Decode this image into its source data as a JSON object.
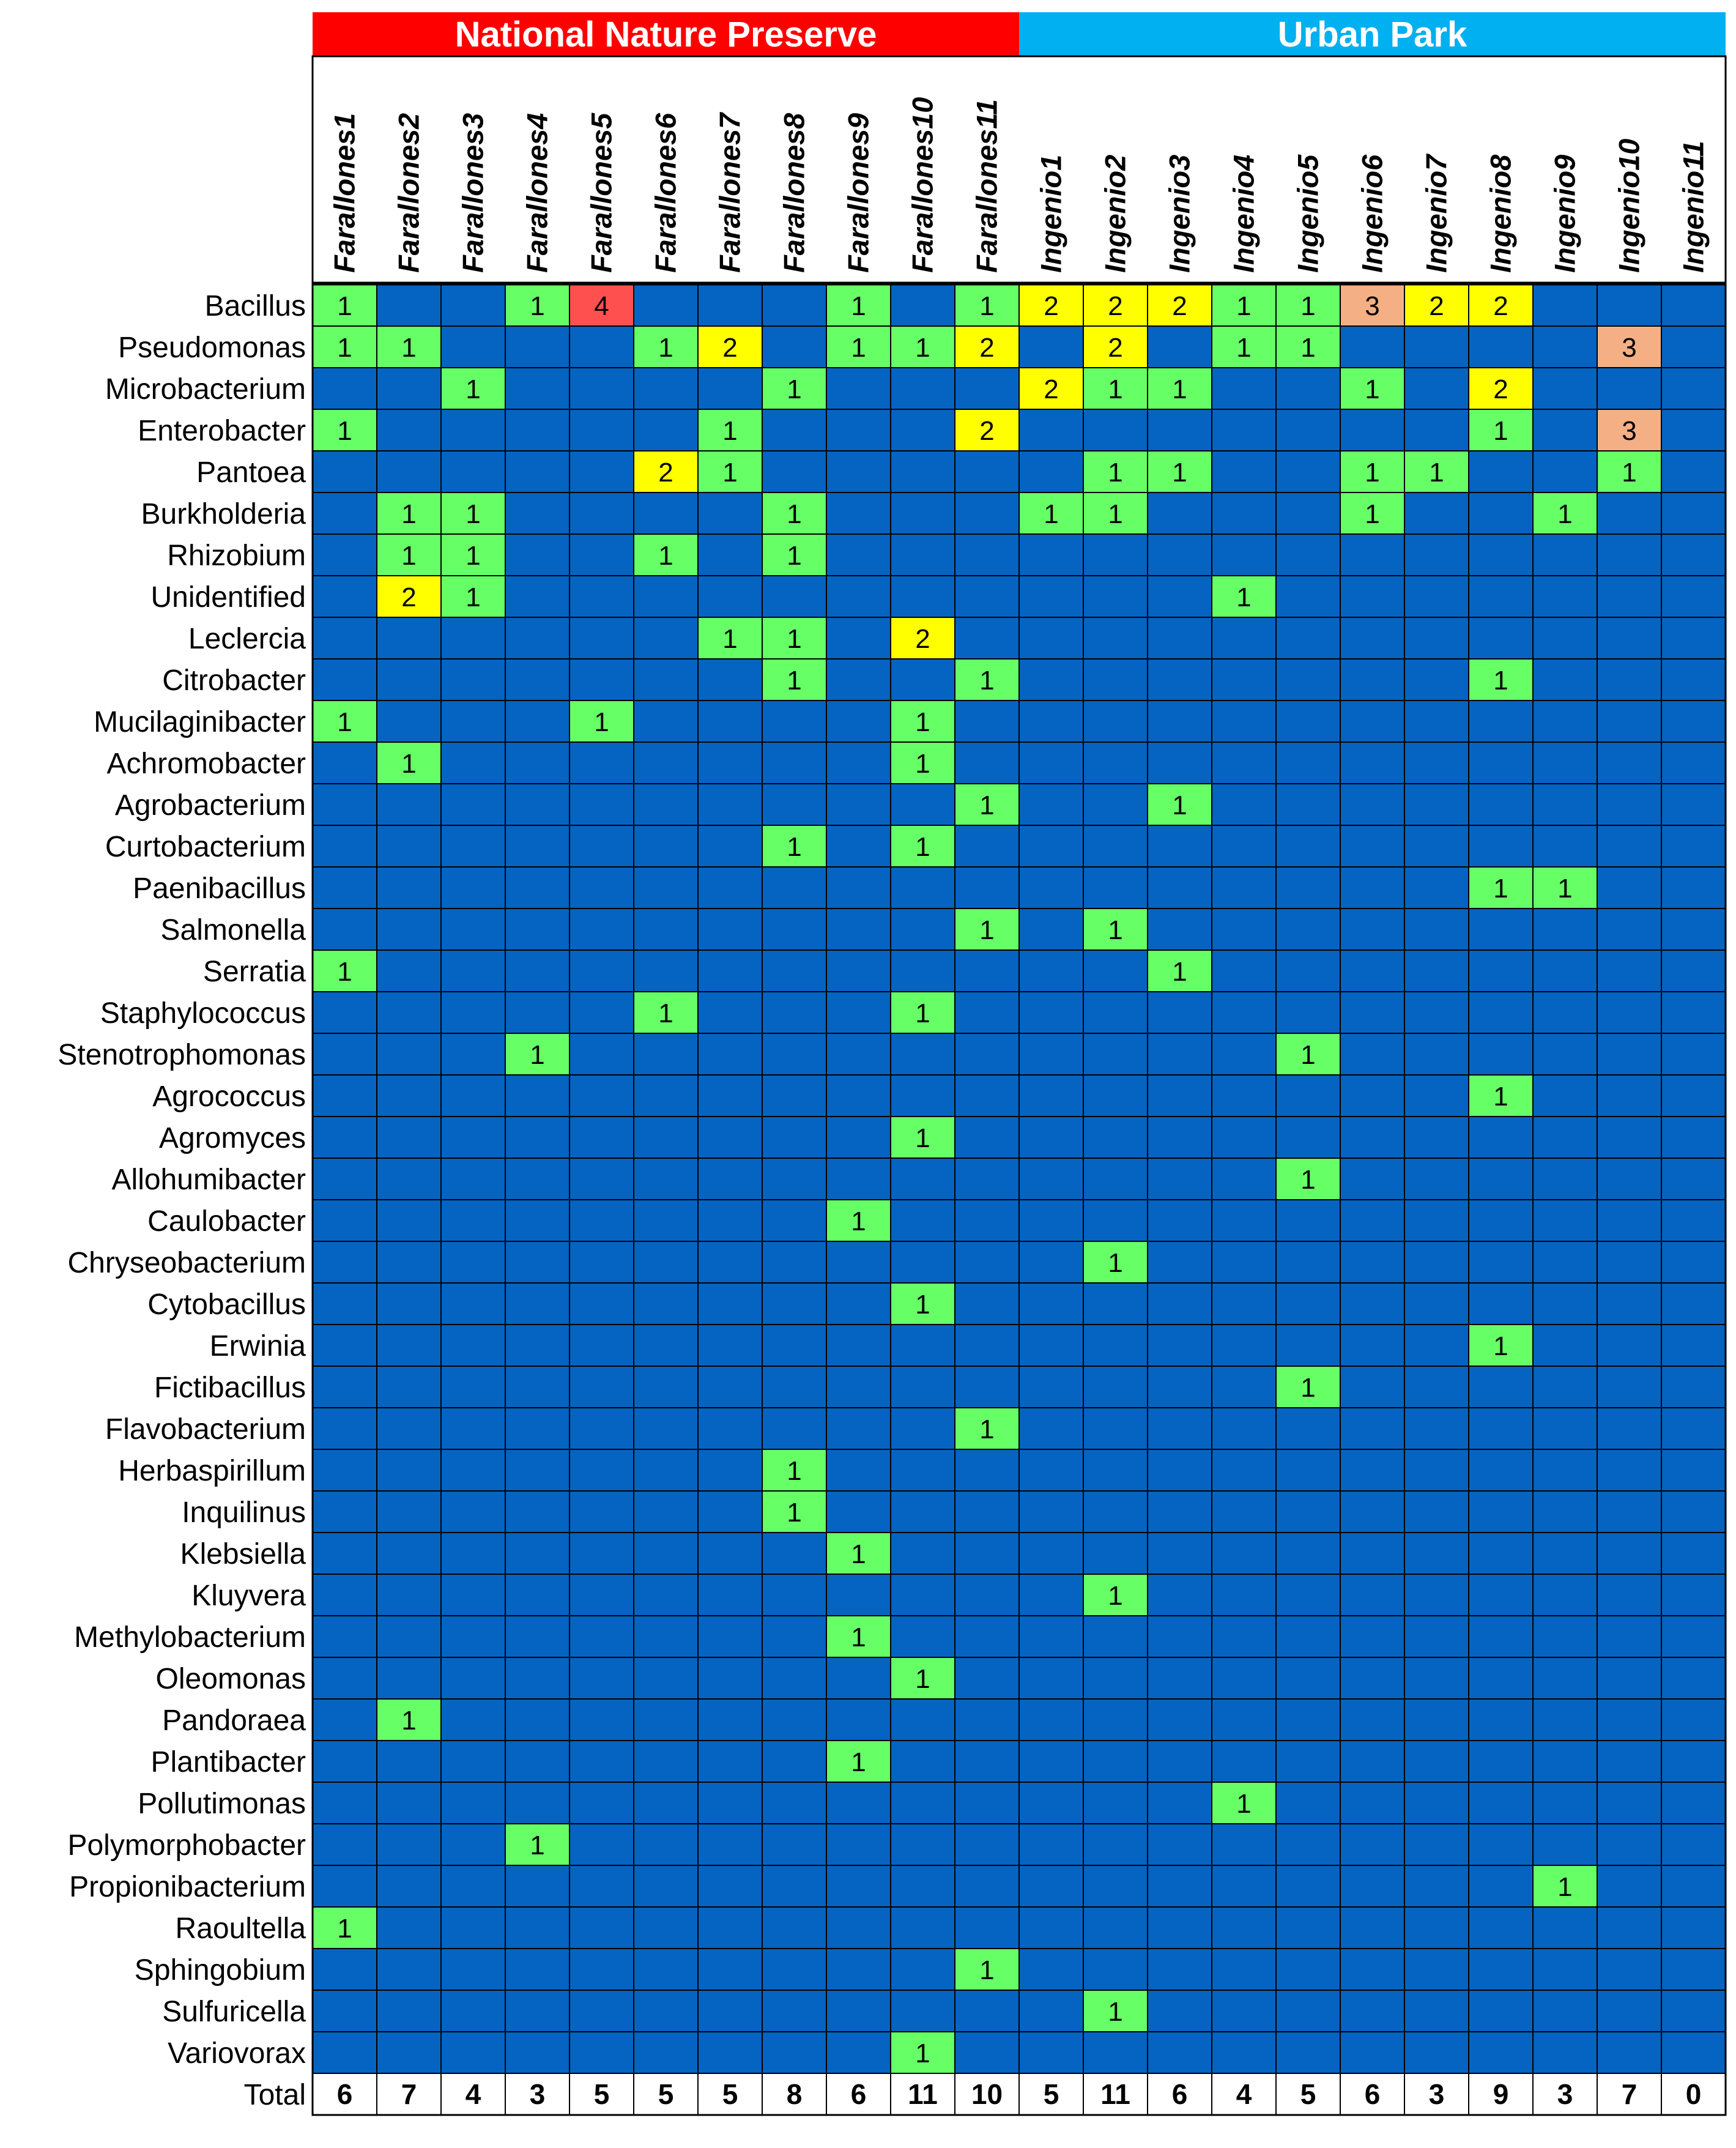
{
  "chart_data": {
    "type": "heatmap",
    "groups": [
      {
        "name": "National Nature Preserve",
        "color": "#ff0000",
        "span": 11
      },
      {
        "name": "Urban Park",
        "color": "#00b0f0",
        "span": 11
      }
    ],
    "columns": [
      "Farallones1",
      "Farallones2",
      "Farallones3",
      "Farallones4",
      "Farallones5",
      "Farallones6",
      "Farallones7",
      "Farallones8",
      "Farallones9",
      "Farallones10",
      "Farallones11",
      "Ingenio1",
      "Ingenio2",
      "Ingenio3",
      "Ingenio4",
      "Ingenio5",
      "Ingenio6",
      "Ingenio7",
      "Ingenio8",
      "Ingenio9",
      "Ingenio10",
      "Ingenio11"
    ],
    "rows": [
      {
        "label": "Bacillus",
        "values": [
          1,
          0,
          0,
          1,
          4,
          0,
          0,
          0,
          1,
          0,
          1,
          2,
          2,
          2,
          1,
          1,
          3,
          2,
          2,
          0,
          0,
          0
        ]
      },
      {
        "label": "Pseudomonas",
        "values": [
          1,
          1,
          0,
          0,
          0,
          1,
          2,
          0,
          1,
          1,
          2,
          0,
          2,
          0,
          1,
          1,
          0,
          0,
          0,
          0,
          3,
          0
        ]
      },
      {
        "label": "Microbacterium",
        "values": [
          0,
          0,
          1,
          0,
          0,
          0,
          0,
          1,
          0,
          0,
          0,
          2,
          1,
          1,
          0,
          0,
          1,
          0,
          2,
          0,
          0,
          0
        ]
      },
      {
        "label": "Enterobacter",
        "values": [
          1,
          0,
          0,
          0,
          0,
          0,
          1,
          0,
          0,
          0,
          2,
          0,
          0,
          0,
          0,
          0,
          0,
          0,
          1,
          0,
          3,
          0
        ]
      },
      {
        "label": "Pantoea",
        "values": [
          0,
          0,
          0,
          0,
          0,
          2,
          1,
          0,
          0,
          0,
          0,
          0,
          1,
          1,
          0,
          0,
          1,
          1,
          0,
          0,
          1,
          0
        ]
      },
      {
        "label": "Burkholderia",
        "values": [
          0,
          1,
          1,
          0,
          0,
          0,
          0,
          1,
          0,
          0,
          0,
          1,
          1,
          0,
          0,
          0,
          1,
          0,
          0,
          1,
          0,
          0
        ]
      },
      {
        "label": "Rhizobium",
        "values": [
          0,
          1,
          1,
          0,
          0,
          1,
          0,
          1,
          0,
          0,
          0,
          0,
          0,
          0,
          0,
          0,
          0,
          0,
          0,
          0,
          0,
          0
        ]
      },
      {
        "label": "Unidentified",
        "values": [
          0,
          2,
          1,
          0,
          0,
          0,
          0,
          0,
          0,
          0,
          0,
          0,
          0,
          0,
          1,
          0,
          0,
          0,
          0,
          0,
          0,
          0
        ]
      },
      {
        "label": "Leclercia",
        "values": [
          0,
          0,
          0,
          0,
          0,
          0,
          1,
          1,
          0,
          2,
          0,
          0,
          0,
          0,
          0,
          0,
          0,
          0,
          0,
          0,
          0,
          0
        ]
      },
      {
        "label": "Citrobacter",
        "values": [
          0,
          0,
          0,
          0,
          0,
          0,
          0,
          1,
          0,
          0,
          1,
          0,
          0,
          0,
          0,
          0,
          0,
          0,
          1,
          0,
          0,
          0
        ]
      },
      {
        "label": "Mucilaginibacter",
        "values": [
          1,
          0,
          0,
          0,
          1,
          0,
          0,
          0,
          0,
          1,
          0,
          0,
          0,
          0,
          0,
          0,
          0,
          0,
          0,
          0,
          0,
          0
        ]
      },
      {
        "label": "Achromobacter",
        "values": [
          0,
          1,
          0,
          0,
          0,
          0,
          0,
          0,
          0,
          1,
          0,
          0,
          0,
          0,
          0,
          0,
          0,
          0,
          0,
          0,
          0,
          0
        ]
      },
      {
        "label": "Agrobacterium",
        "values": [
          0,
          0,
          0,
          0,
          0,
          0,
          0,
          0,
          0,
          0,
          1,
          0,
          0,
          1,
          0,
          0,
          0,
          0,
          0,
          0,
          0,
          0
        ]
      },
      {
        "label": "Curtobacterium",
        "values": [
          0,
          0,
          0,
          0,
          0,
          0,
          0,
          1,
          0,
          1,
          0,
          0,
          0,
          0,
          0,
          0,
          0,
          0,
          0,
          0,
          0,
          0
        ]
      },
      {
        "label": "Paenibacillus",
        "values": [
          0,
          0,
          0,
          0,
          0,
          0,
          0,
          0,
          0,
          0,
          0,
          0,
          0,
          0,
          0,
          0,
          0,
          0,
          1,
          1,
          0,
          0
        ]
      },
      {
        "label": "Salmonella",
        "values": [
          0,
          0,
          0,
          0,
          0,
          0,
          0,
          0,
          0,
          0,
          1,
          0,
          1,
          0,
          0,
          0,
          0,
          0,
          0,
          0,
          0,
          0
        ]
      },
      {
        "label": "Serratia",
        "values": [
          1,
          0,
          0,
          0,
          0,
          0,
          0,
          0,
          0,
          0,
          0,
          0,
          0,
          1,
          0,
          0,
          0,
          0,
          0,
          0,
          0,
          0
        ]
      },
      {
        "label": "Staphylococcus",
        "values": [
          0,
          0,
          0,
          0,
          0,
          1,
          0,
          0,
          0,
          1,
          0,
          0,
          0,
          0,
          0,
          0,
          0,
          0,
          0,
          0,
          0,
          0
        ]
      },
      {
        "label": "Stenotrophomonas",
        "values": [
          0,
          0,
          0,
          1,
          0,
          0,
          0,
          0,
          0,
          0,
          0,
          0,
          0,
          0,
          0,
          1,
          0,
          0,
          0,
          0,
          0,
          0
        ]
      },
      {
        "label": "Agrococcus",
        "values": [
          0,
          0,
          0,
          0,
          0,
          0,
          0,
          0,
          0,
          0,
          0,
          0,
          0,
          0,
          0,
          0,
          0,
          0,
          1,
          0,
          0,
          0
        ]
      },
      {
        "label": "Agromyces",
        "values": [
          0,
          0,
          0,
          0,
          0,
          0,
          0,
          0,
          0,
          1,
          0,
          0,
          0,
          0,
          0,
          0,
          0,
          0,
          0,
          0,
          0,
          0
        ]
      },
      {
        "label": "Allohumibacter",
        "values": [
          0,
          0,
          0,
          0,
          0,
          0,
          0,
          0,
          0,
          0,
          0,
          0,
          0,
          0,
          0,
          1,
          0,
          0,
          0,
          0,
          0,
          0
        ]
      },
      {
        "label": "Caulobacter",
        "values": [
          0,
          0,
          0,
          0,
          0,
          0,
          0,
          0,
          1,
          0,
          0,
          0,
          0,
          0,
          0,
          0,
          0,
          0,
          0,
          0,
          0,
          0
        ]
      },
      {
        "label": "Chryseobacterium",
        "values": [
          0,
          0,
          0,
          0,
          0,
          0,
          0,
          0,
          0,
          0,
          0,
          0,
          1,
          0,
          0,
          0,
          0,
          0,
          0,
          0,
          0,
          0
        ]
      },
      {
        "label": "Cytobacillus",
        "values": [
          0,
          0,
          0,
          0,
          0,
          0,
          0,
          0,
          0,
          1,
          0,
          0,
          0,
          0,
          0,
          0,
          0,
          0,
          0,
          0,
          0,
          0
        ]
      },
      {
        "label": "Erwinia",
        "values": [
          0,
          0,
          0,
          0,
          0,
          0,
          0,
          0,
          0,
          0,
          0,
          0,
          0,
          0,
          0,
          0,
          0,
          0,
          1,
          0,
          0,
          0
        ]
      },
      {
        "label": "Fictibacillus",
        "values": [
          0,
          0,
          0,
          0,
          0,
          0,
          0,
          0,
          0,
          0,
          0,
          0,
          0,
          0,
          0,
          1,
          0,
          0,
          0,
          0,
          0,
          0
        ]
      },
      {
        "label": "Flavobacterium",
        "values": [
          0,
          0,
          0,
          0,
          0,
          0,
          0,
          0,
          0,
          0,
          1,
          0,
          0,
          0,
          0,
          0,
          0,
          0,
          0,
          0,
          0,
          0
        ]
      },
      {
        "label": "Herbaspirillum",
        "values": [
          0,
          0,
          0,
          0,
          0,
          0,
          0,
          1,
          0,
          0,
          0,
          0,
          0,
          0,
          0,
          0,
          0,
          0,
          0,
          0,
          0,
          0
        ]
      },
      {
        "label": "Inquilinus",
        "values": [
          0,
          0,
          0,
          0,
          0,
          0,
          0,
          1,
          0,
          0,
          0,
          0,
          0,
          0,
          0,
          0,
          0,
          0,
          0,
          0,
          0,
          0
        ]
      },
      {
        "label": "Klebsiella",
        "values": [
          0,
          0,
          0,
          0,
          0,
          0,
          0,
          0,
          1,
          0,
          0,
          0,
          0,
          0,
          0,
          0,
          0,
          0,
          0,
          0,
          0,
          0
        ]
      },
      {
        "label": "Kluyvera",
        "values": [
          0,
          0,
          0,
          0,
          0,
          0,
          0,
          0,
          0,
          0,
          0,
          0,
          1,
          0,
          0,
          0,
          0,
          0,
          0,
          0,
          0,
          0
        ]
      },
      {
        "label": "Methylobacterium",
        "values": [
          0,
          0,
          0,
          0,
          0,
          0,
          0,
          0,
          1,
          0,
          0,
          0,
          0,
          0,
          0,
          0,
          0,
          0,
          0,
          0,
          0,
          0
        ]
      },
      {
        "label": "Oleomonas",
        "values": [
          0,
          0,
          0,
          0,
          0,
          0,
          0,
          0,
          0,
          1,
          0,
          0,
          0,
          0,
          0,
          0,
          0,
          0,
          0,
          0,
          0,
          0
        ]
      },
      {
        "label": "Pandoraea",
        "values": [
          0,
          1,
          0,
          0,
          0,
          0,
          0,
          0,
          0,
          0,
          0,
          0,
          0,
          0,
          0,
          0,
          0,
          0,
          0,
          0,
          0,
          0
        ]
      },
      {
        "label": "Plantibacter",
        "values": [
          0,
          0,
          0,
          0,
          0,
          0,
          0,
          0,
          1,
          0,
          0,
          0,
          0,
          0,
          0,
          0,
          0,
          0,
          0,
          0,
          0,
          0
        ]
      },
      {
        "label": "Pollutimonas",
        "values": [
          0,
          0,
          0,
          0,
          0,
          0,
          0,
          0,
          0,
          0,
          0,
          0,
          0,
          0,
          1,
          0,
          0,
          0,
          0,
          0,
          0,
          0
        ]
      },
      {
        "label": "Polymorphobacter",
        "values": [
          0,
          0,
          0,
          1,
          0,
          0,
          0,
          0,
          0,
          0,
          0,
          0,
          0,
          0,
          0,
          0,
          0,
          0,
          0,
          0,
          0,
          0
        ]
      },
      {
        "label": "Propionibacterium",
        "values": [
          0,
          0,
          0,
          0,
          0,
          0,
          0,
          0,
          0,
          0,
          0,
          0,
          0,
          0,
          0,
          0,
          0,
          0,
          0,
          1,
          0,
          0
        ]
      },
      {
        "label": "Raoultella",
        "values": [
          1,
          0,
          0,
          0,
          0,
          0,
          0,
          0,
          0,
          0,
          0,
          0,
          0,
          0,
          0,
          0,
          0,
          0,
          0,
          0,
          0,
          0
        ]
      },
      {
        "label": "Sphingobium",
        "values": [
          0,
          0,
          0,
          0,
          0,
          0,
          0,
          0,
          0,
          0,
          1,
          0,
          0,
          0,
          0,
          0,
          0,
          0,
          0,
          0,
          0,
          0
        ]
      },
      {
        "label": "Sulfuricella",
        "values": [
          0,
          0,
          0,
          0,
          0,
          0,
          0,
          0,
          0,
          0,
          0,
          0,
          1,
          0,
          0,
          0,
          0,
          0,
          0,
          0,
          0,
          0
        ]
      },
      {
        "label": "Variovorax",
        "values": [
          0,
          0,
          0,
          0,
          0,
          0,
          0,
          0,
          0,
          1,
          0,
          0,
          0,
          0,
          0,
          0,
          0,
          0,
          0,
          0,
          0,
          0
        ]
      }
    ],
    "totals_label": "Total",
    "totals": [
      6,
      7,
      4,
      3,
      5,
      5,
      5,
      8,
      6,
      11,
      10,
      5,
      11,
      6,
      4,
      5,
      6,
      3,
      9,
      3,
      7,
      0
    ],
    "color_scale": {
      "0": "#0563c1",
      "1": "#66ff66",
      "2": "#ffff00",
      "3": "#f4b084",
      "4": "#ff5050"
    },
    "grid_color": "#000000"
  }
}
